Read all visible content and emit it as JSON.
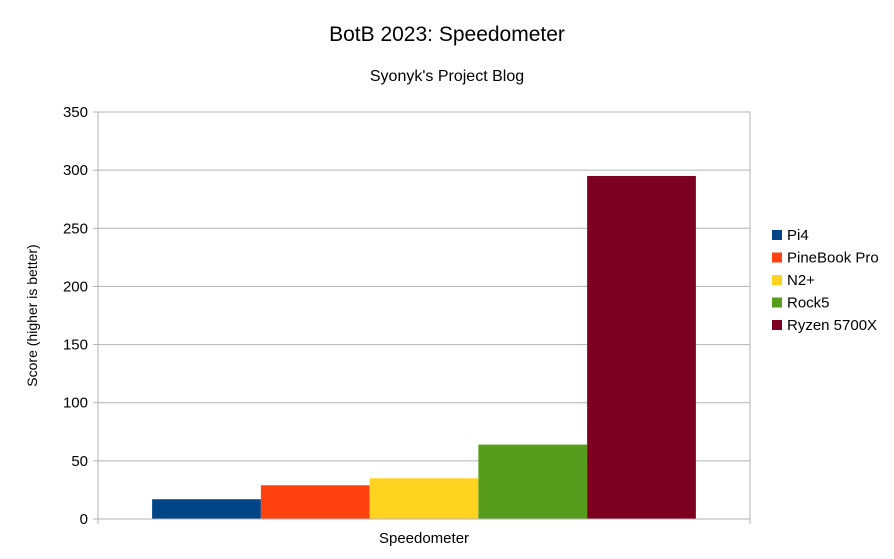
{
  "chart_data": {
    "type": "bar",
    "title": "BotB 2023: Speedometer",
    "subtitle": "Syonyk's Project Blog",
    "xlabel": "",
    "ylabel": "Score (higher is better)",
    "categories": [
      "Speedometer"
    ],
    "series": [
      {
        "name": "Pi4",
        "values": [
          17
        ],
        "color": "#004586"
      },
      {
        "name": "PineBook Pro",
        "values": [
          29
        ],
        "color": "#ff420e"
      },
      {
        "name": "N2+",
        "values": [
          35
        ],
        "color": "#ffd320"
      },
      {
        "name": "Rock5",
        "values": [
          64
        ],
        "color": "#579d1c"
      },
      {
        "name": "Ryzen 5700X",
        "values": [
          295
        ],
        "color": "#7e0021"
      }
    ],
    "ylim": [
      0,
      350
    ],
    "yticks": [
      0,
      50,
      100,
      150,
      200,
      250,
      300,
      350
    ],
    "grid": true,
    "legend_position": "right"
  }
}
